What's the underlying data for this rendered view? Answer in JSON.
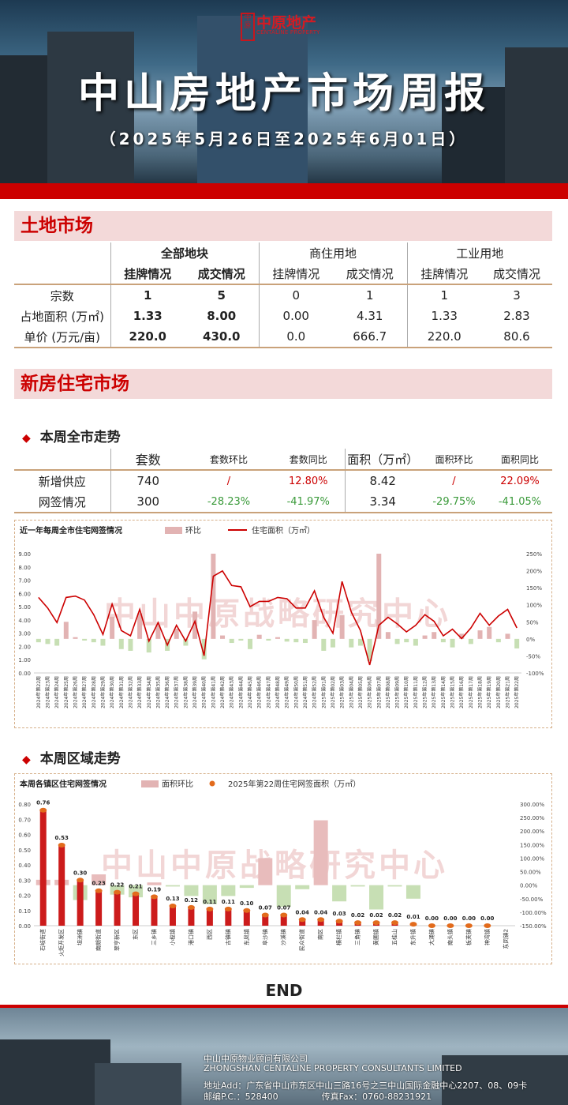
{
  "brand": {
    "logo_char": "中原",
    "name": "中原地产",
    "en": "CENTALINE PROPERTY"
  },
  "report": {
    "title": "中山房地产市场周报",
    "period": "（2025年5月26日至2025年6月01日）"
  },
  "land": {
    "section_title": "土地市场",
    "groups": [
      "全部地块",
      "商住用地",
      "工业用地"
    ],
    "sub_cols": [
      "挂牌情况",
      "成交情况",
      "挂牌情况",
      "成交情况",
      "挂牌情况",
      "成交情况"
    ],
    "rows": [
      {
        "label": "宗数",
        "values": [
          "1",
          "5",
          "0",
          "1",
          "1",
          "3"
        ]
      },
      {
        "label": "占地面积 (万㎡)",
        "values": [
          "1.33",
          "8.00",
          "0.00",
          "4.31",
          "1.33",
          "2.83"
        ]
      },
      {
        "label": "单价 (万元/亩)",
        "values": [
          "220.0",
          "430.0",
          "0.0",
          "666.7",
          "220.0",
          "80.6"
        ]
      }
    ]
  },
  "newhome": {
    "section_title": "新房住宅市场",
    "city_head": "本周全市走势",
    "table_head": [
      "套数",
      "套数环比",
      "套数同比",
      "面积（万㎡）",
      "面积环比",
      "面积同比"
    ],
    "rows": [
      {
        "label": "新增供应",
        "values": [
          "740",
          "/",
          "12.80%",
          "8.42",
          "/",
          "22.09%"
        ]
      },
      {
        "label": "网签情况",
        "values": [
          "300",
          "-28.23%",
          "-41.97%",
          "3.34",
          "-29.75%",
          "-41.05%"
        ]
      }
    ],
    "colors": {
      "up": "#c00000",
      "down": "#3a9a3a"
    },
    "region_head": "本周区域走势"
  },
  "watermark": "中山中原战略研究中心",
  "chart_data": [
    {
      "type": "bar",
      "title": "近一年每周全市住宅网签情况",
      "legend": [
        "环比",
        "住宅面积（万㎡）"
      ],
      "left_axis": {
        "ylim": [
          0,
          9
        ],
        "ticks": [
          "0.00",
          "1.00",
          "2.00",
          "3.00",
          "4.00",
          "5.00",
          "6.00",
          "7.00",
          "8.00",
          "9.00"
        ]
      },
      "right_axis": {
        "ylim": [
          -100,
          250
        ],
        "ticks": [
          "-100%",
          "-50%",
          "0%",
          "50%",
          "100%",
          "150%",
          "200%",
          "250%"
        ]
      },
      "categories": [
        "2024年第22周",
        "2024年第23周",
        "2024年第24周",
        "2024年第25周",
        "2024年第26周",
        "2024年第27周",
        "2024年第28周",
        "2024年第29周",
        "2024年第30周",
        "2024年第31周",
        "2024年第32周",
        "2024年第33周",
        "2024年第34周",
        "2024年第35周",
        "2024年第36周",
        "2024年第37周",
        "2024年第38周",
        "2024年第39周",
        "2024年第40周",
        "2024年第41周",
        "2024年第42周",
        "2024年第43周",
        "2024年第44周",
        "2024年第45周",
        "2024年第46周",
        "2024年第47周",
        "2024年第48周",
        "2024年第49周",
        "2024年第50周",
        "2024年第51周",
        "2024年第52周",
        "2025年第01周",
        "2025年第02周",
        "2025年第03周",
        "2025年第04周",
        "2025年第05周",
        "2025年第06周",
        "2025年第07周",
        "2025年第08周",
        "2025年第09周",
        "2025年第10周",
        "2025年第11周",
        "2025年第12周",
        "2025年第13周",
        "2025年第14周",
        "2025年第15周",
        "2025年第16周",
        "2025年第17周",
        "2025年第18周",
        "2025年第19周",
        "2025年第20周",
        "2025年第21周",
        "2025年第22周"
      ],
      "series": [
        {
          "name": "环比",
          "kind": "bar",
          "axis": "right",
          "values": [
            -10,
            -15,
            -20,
            50,
            5,
            -5,
            -10,
            -20,
            65,
            -30,
            -35,
            75,
            -40,
            40,
            -35,
            30,
            -20,
            80,
            -60,
            250,
            10,
            -12,
            -5,
            -30,
            12,
            -5,
            5,
            -8,
            -10,
            -12,
            55,
            -35,
            -25,
            70,
            -25,
            -20,
            -65,
            250,
            20,
            -15,
            -10,
            -20,
            10,
            20,
            -10,
            -25,
            15,
            -15,
            25,
            35,
            -10,
            15,
            -28
          ]
        },
        {
          "name": "住宅面积（万㎡）",
          "kind": "line",
          "axis": "left",
          "values": [
            5.7,
            4.9,
            3.8,
            5.7,
            5.8,
            5.5,
            4.4,
            2.9,
            5.2,
            3.2,
            2.8,
            4.8,
            2.4,
            3.8,
            2.1,
            3.6,
            2.4,
            3.9,
            1.3,
            7.3,
            7.7,
            6.6,
            6.5,
            5.0,
            5.4,
            5.4,
            5.7,
            5.6,
            4.9,
            4.9,
            6.2,
            4.2,
            3.0,
            6.9,
            4.6,
            3.2,
            0.6,
            3.6,
            4.2,
            3.7,
            3.1,
            3.6,
            4.4,
            3.9,
            2.8,
            3.3,
            2.6,
            3.4,
            4.5,
            3.6,
            4.3,
            4.8,
            3.4
          ]
        }
      ]
    },
    {
      "type": "bar",
      "title": "本周各镇区住宅网签情况",
      "legend": [
        "面积环比",
        "2025年第22周住宅网签面积（万㎡）"
      ],
      "left_axis": {
        "ylim": [
          0,
          0.8
        ],
        "ticks": [
          "0.00",
          "0.10",
          "0.20",
          "0.30",
          "0.40",
          "0.50",
          "0.60",
          "0.70",
          "0.80"
        ]
      },
      "right_axis": {
        "ylim": [
          -150,
          300
        ],
        "ticks": [
          "-150.00%",
          "-100.00%",
          "-50.00%",
          "0.00%",
          "50.00%",
          "100.00%",
          "150.00%",
          "200.00%",
          "250.00%",
          "300.00%"
        ]
      },
      "categories": [
        "石岐街道",
        "火炬开发区",
        "坦洲镇",
        "南朗街道",
        "翠亨新区",
        "东区",
        "三乡镇",
        "小榄镇",
        "港口镇",
        "西区",
        "古镇镇",
        "东凤镇",
        "阜沙镇",
        "沙溪镇",
        "民众街道",
        "南区",
        "横栏镇",
        "三角镇",
        "黄圃镇",
        "五桂山",
        "东升镇",
        "大涌镇",
        "南头镇",
        "板芙镇",
        "神湾镇",
        "东凤镇2"
      ],
      "series": [
        {
          "name": "2025年第22周住宅网签面积（万㎡）",
          "kind": "bar",
          "axis": "left",
          "values": [
            0.76,
            0.53,
            0.3,
            0.23,
            0.22,
            0.21,
            0.19,
            0.13,
            0.12,
            0.11,
            0.11,
            0.1,
            0.07,
            0.07,
            0.04,
            0.04,
            0.03,
            0.02,
            0.02,
            0.02,
            0.01,
            0.0,
            0.0,
            0.0,
            0.0,
            0.0
          ]
        },
        {
          "name": "面积环比",
          "kind": "bar",
          "axis": "right",
          "values": [
            20,
            20,
            -55,
            40,
            -35,
            -45,
            10,
            -5,
            -40,
            -70,
            -40,
            -10,
            100,
            -80,
            -15,
            240,
            -60,
            -5,
            -90,
            -5,
            -50,
            0,
            0,
            0,
            0,
            0
          ]
        }
      ]
    }
  ]
}
